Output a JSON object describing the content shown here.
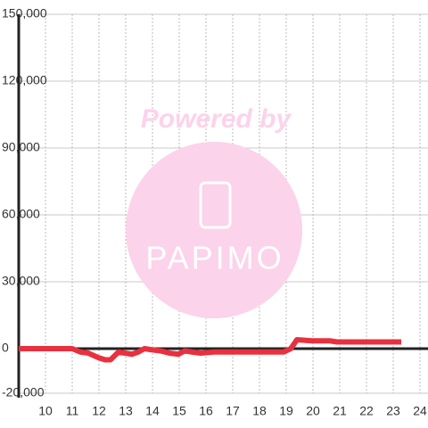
{
  "chart_data": {
    "type": "line",
    "watermark": {
      "title": "Powered by",
      "brand": "PAPIMO"
    },
    "x": [
      9.0,
      11.0,
      11.3,
      11.6,
      11.97,
      12.23,
      12.43,
      12.73,
      12.97,
      13.23,
      13.47,
      13.7,
      13.97,
      14.3,
      14.63,
      14.97,
      15.2,
      15.47,
      15.8,
      16.3,
      18.9,
      19.17,
      19.4,
      19.97,
      20.63,
      20.9,
      23.3
    ],
    "series": [
      {
        "color": "#e8303f",
        "values": [
          0,
          0,
          -1500,
          -2000,
          -4000,
          -5000,
          -5000,
          -1500,
          -2000,
          -2500,
          -1500,
          0,
          -500,
          -1000,
          -2000,
          -2500,
          -1000,
          -1500,
          -2000,
          -1500,
          -1500,
          0,
          4000,
          3500,
          3500,
          3000,
          3000
        ]
      }
    ],
    "xlim": [
      9,
      24.3
    ],
    "ylim": [
      -20000,
      150000
    ],
    "xticks": [
      10,
      11,
      12,
      13,
      14,
      15,
      16,
      17,
      18,
      19,
      20,
      21,
      22,
      23,
      24
    ],
    "yticks": [
      {
        "value": -20000,
        "label": "-20,000"
      },
      0,
      {
        "value": 30000,
        "label": "30,000"
      },
      {
        "value": 60000,
        "label": "60,000"
      },
      {
        "value": 90000,
        "label": "90,000"
      },
      {
        "value": 120000,
        "label": "120,000"
      },
      {
        "value": 150000,
        "label": "150,000"
      }
    ],
    "grid": true
  }
}
